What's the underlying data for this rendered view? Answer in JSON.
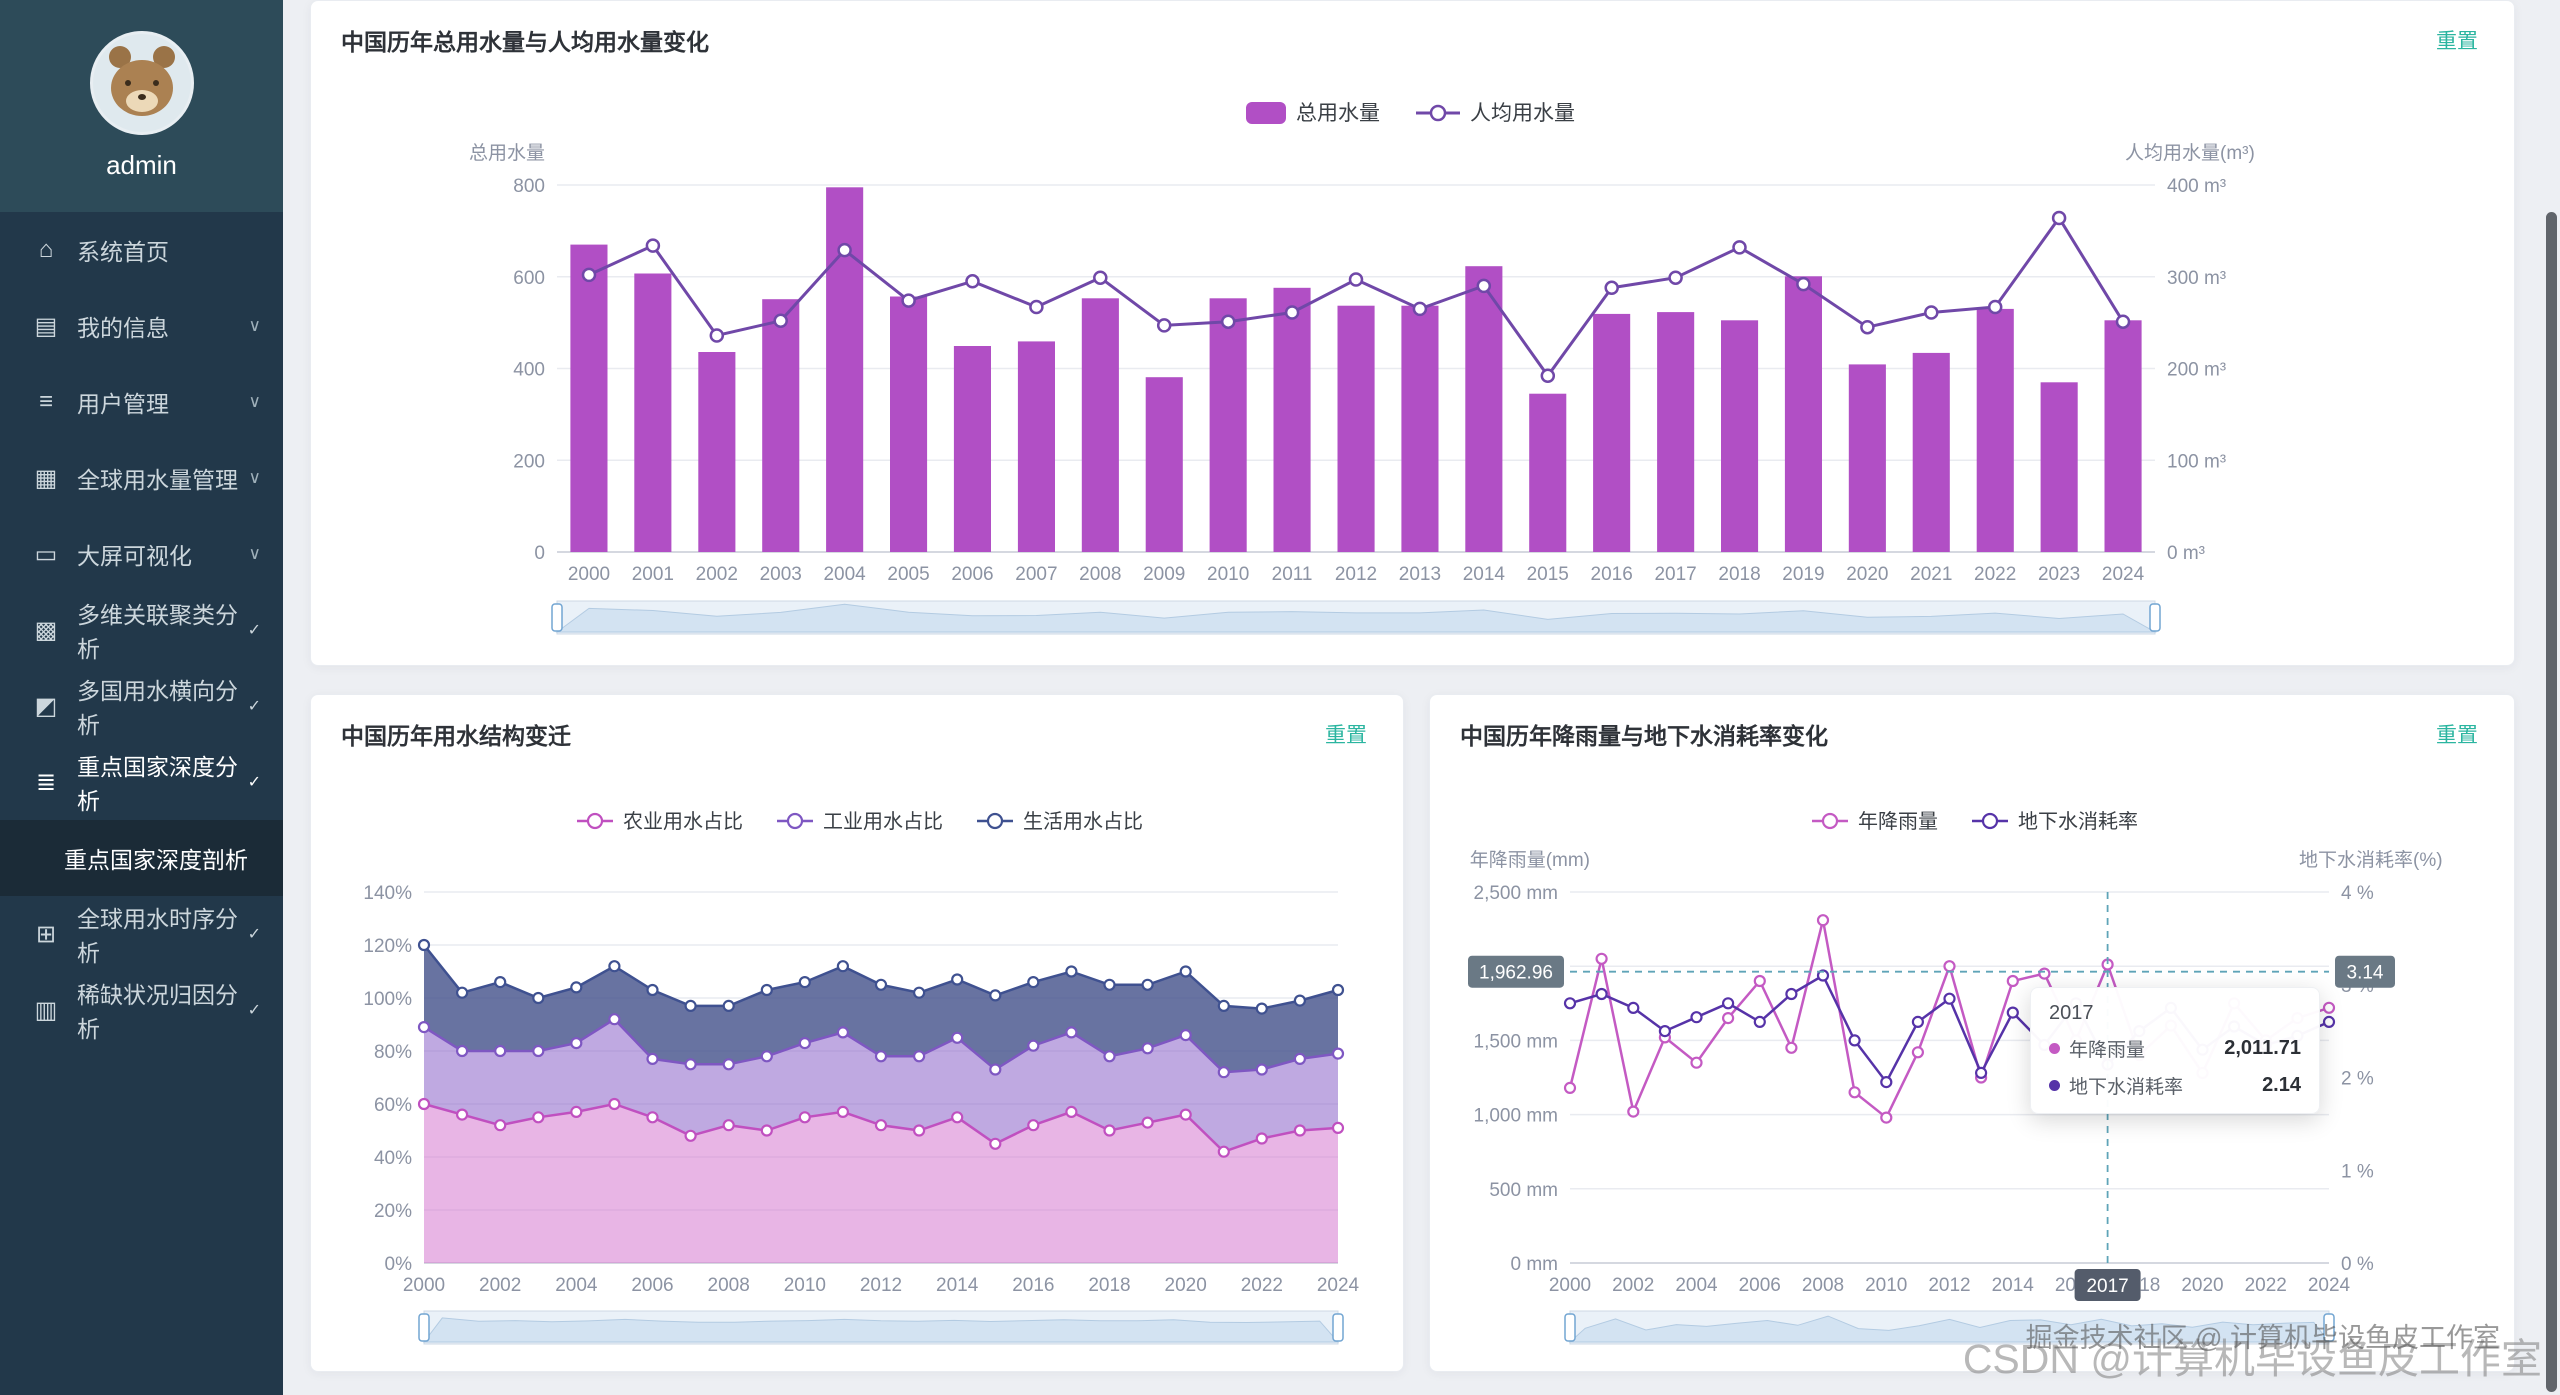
{
  "sidebar": {
    "username": "admin",
    "items": [
      {
        "label": "系统首页"
      },
      {
        "label": "我的信息"
      },
      {
        "label": "用户管理"
      },
      {
        "label": "全球用水量管理"
      },
      {
        "label": "大屏可视化"
      },
      {
        "label": "多维关联聚类分析"
      },
      {
        "label": "多国用水横向分析"
      },
      {
        "label": "重点国家深度分析"
      },
      {
        "label": "全球用水时序分析"
      },
      {
        "label": "稀缺状况归因分析"
      }
    ],
    "submenu_item": "重点国家深度剖析"
  },
  "cards": {
    "usage": {
      "title": "中国历年总用水量与人均用水量变化",
      "reset_label": "重置"
    },
    "structure": {
      "title": "中国历年用水结构变迁",
      "reset_label": "重置"
    },
    "rainfall": {
      "title": "中国历年降雨量与地下水消耗率变化",
      "reset_label": "重置"
    }
  },
  "tooltip": {
    "title": "2017",
    "rows": [
      {
        "name": "年降雨量",
        "value": "2,011.71"
      },
      {
        "name": "地下水消耗率",
        "value": "2.14"
      }
    ]
  },
  "watermarks": {
    "csdn": "CSDN @计算机毕设鱼皮工作室",
    "juejin": "掘金技术社区 @ 计算机毕设鱼皮工作室"
  },
  "chart_data": [
    {
      "type": "bar",
      "title": "中国历年总用水量与人均用水量变化",
      "categories": [
        2000,
        2001,
        2002,
        2003,
        2004,
        2005,
        2006,
        2007,
        2008,
        2009,
        2010,
        2011,
        2012,
        2013,
        2014,
        2015,
        2016,
        2017,
        2018,
        2019,
        2020,
        2021,
        2022,
        2023,
        2024
      ],
      "series": [
        {
          "name": "总用水量",
          "type": "bar",
          "color": "#b14fc5",
          "values": [
            670,
            607,
            436,
            551,
            795,
            557,
            449,
            459,
            553,
            381,
            553,
            576,
            537,
            537,
            623,
            345,
            519,
            523,
            505,
            601,
            409,
            434,
            530,
            370,
            505
          ]
        },
        {
          "name": "人均用水量",
          "type": "line",
          "color": "#7048a8",
          "values": [
            302,
            334,
            236,
            252,
            329,
            274,
            295,
            267,
            299,
            247,
            251,
            261,
            297,
            265,
            290,
            192,
            288,
            299,
            332,
            292,
            245,
            261,
            267,
            364,
            251
          ]
        }
      ],
      "left_axis": {
        "name": "总用水量",
        "min": 0,
        "max": 800,
        "step": 200,
        "suffix": ""
      },
      "right_axis": {
        "name": "人均用水量(m³)",
        "min": 0,
        "max": 400,
        "step": 100,
        "suffix": " m³"
      },
      "legend_position": "top",
      "grid": true
    },
    {
      "type": "area",
      "stacked": true,
      "title": "中国历年用水结构变迁",
      "categories": [
        2000,
        2001,
        2002,
        2003,
        2004,
        2005,
        2006,
        2007,
        2008,
        2009,
        2010,
        2011,
        2012,
        2013,
        2014,
        2015,
        2016,
        2017,
        2018,
        2019,
        2020,
        2021,
        2022,
        2023,
        2024
      ],
      "series": [
        {
          "name": "农业用水占比",
          "color": "#c050c0",
          "fill": "rgba(214,120,207,0.55)",
          "values": [
            60,
            56,
            52,
            55,
            57,
            60,
            55,
            48,
            52,
            50,
            55,
            57,
            52,
            50,
            55,
            45,
            52,
            57,
            50,
            53,
            56,
            42,
            47,
            50,
            51
          ]
        },
        {
          "name": "工业用水占比",
          "color": "#7e57c2",
          "fill": "rgba(138,99,201,0.55)",
          "values": [
            29,
            24,
            28,
            25,
            26,
            32,
            22,
            27,
            23,
            28,
            28,
            30,
            26,
            28,
            30,
            28,
            30,
            30,
            28,
            28,
            30,
            30,
            26,
            27,
            28
          ]
        },
        {
          "name": "生活用水占比",
          "color": "#3f5190",
          "fill": "rgba(71,84,140,0.82)",
          "values": [
            31,
            22,
            26,
            20,
            21,
            20,
            26,
            22,
            22,
            25,
            23,
            25,
            27,
            24,
            22,
            28,
            24,
            23,
            27,
            24,
            24,
            25,
            23,
            22,
            24
          ]
        }
      ],
      "y_axis": {
        "min": 0,
        "max": 140,
        "step": 20,
        "suffix": "%"
      },
      "x_label_every": 2,
      "grid": true
    },
    {
      "type": "line",
      "title": "中国历年降雨量与地下水消耗率变化",
      "categories": [
        2000,
        2001,
        2002,
        2003,
        2004,
        2005,
        2006,
        2007,
        2008,
        2009,
        2010,
        2011,
        2012,
        2013,
        2014,
        2015,
        2016,
        2017,
        2018,
        2019,
        2020,
        2021,
        2022,
        2023,
        2024
      ],
      "series": [
        {
          "name": "年降雨量",
          "color": "#c45ac3",
          "axis": "left",
          "values": [
            1180,
            2050,
            1020,
            1520,
            1350,
            1650,
            1900,
            1450,
            2310,
            1150,
            980,
            1420,
            2000,
            1250,
            1900,
            1950,
            1500,
            2011.71,
            1400,
            1600,
            1280,
            1750,
            1500,
            1650,
            1720
          ]
        },
        {
          "name": "地下水消耗率",
          "color": "#5633a8",
          "axis": "right",
          "values": [
            2.8,
            2.9,
            2.75,
            2.5,
            2.65,
            2.8,
            2.6,
            2.9,
            3.1,
            2.4,
            1.95,
            2.6,
            2.85,
            2.05,
            2.7,
            2.35,
            2.8,
            2.14,
            2.5,
            2.75,
            2.3,
            2.55,
            2.35,
            2.45,
            2.6
          ]
        }
      ],
      "left_axis": {
        "name": "年降雨量(mm)",
        "min": 0,
        "max": 2500,
        "step": 500,
        "suffix": " mm"
      },
      "right_axis": {
        "name": "地下水消耗率(%)",
        "min": 0,
        "max": 4,
        "step": 1,
        "suffix": " %"
      },
      "pointer": {
        "x_label": "2017",
        "x_index": 17,
        "h_value": 1962.96,
        "left_label": "1,962.96",
        "right_label": "3.14",
        "color": "#5fa4b8",
        "label_bg": "#6a7985"
      },
      "x_label_every": 2,
      "grid": true
    }
  ]
}
